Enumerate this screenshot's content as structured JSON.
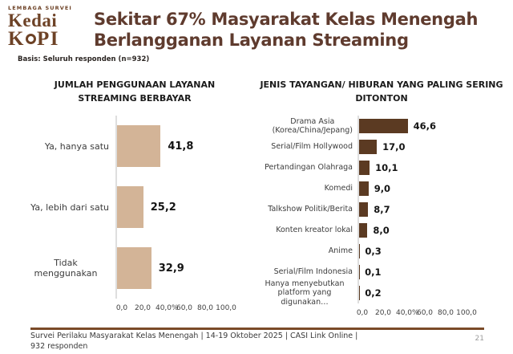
{
  "logo": {
    "tagline": "LEMBAGA SURVEI",
    "name_line1": "Kedai",
    "name_line2_prefix": "K",
    "name_line2_suffix": "PI"
  },
  "header": {
    "title_lines": [
      "Sekitar 67% Masyarakat Kelas Menengah",
      "Berlangganan Layanan Streaming"
    ],
    "basis": "Basis: Seluruh responden (n=932)"
  },
  "colors": {
    "title_brown": "#5f3b2e",
    "logo_brown": "#6d4226",
    "left_bar": "#d3b497",
    "right_bar": "#5b3a22",
    "footer_line": "#7a4a28",
    "axis_line": "#dedede"
  },
  "chart_data": [
    {
      "type": "bar",
      "orientation": "horizontal",
      "title": "JUMLAH PENGGUNAAN LAYANAN STREAMING BERBAYAR",
      "title_lines": [
        "JUMLAH PENGGUNAAN LAYANAN",
        "STREAMING BERBAYAR"
      ],
      "categories": [
        "Ya, hanya satu",
        "Ya, lebih dari satu",
        "Tidak menggunakan"
      ],
      "category_lines": [
        [
          "Ya, hanya satu"
        ],
        [
          "Ya, lebih dari satu"
        ],
        [
          "Tidak menggunakan"
        ]
      ],
      "values": [
        41.8,
        25.2,
        32.9
      ],
      "value_labels": [
        "41,8",
        "25,2",
        "32,9"
      ],
      "xlim": [
        0,
        100
      ],
      "x_tick_values": [
        0,
        20,
        40,
        60,
        80,
        100
      ],
      "x_tick_labels": [
        "0,0",
        "20,0",
        "40,0",
        "60,0",
        "80,0",
        "100,0"
      ],
      "unit_label": "%",
      "bar_color": "#d3b497",
      "grid": false,
      "legend": false
    },
    {
      "type": "bar",
      "orientation": "horizontal",
      "title": "JENIS TAYANGAN/ HIBURAN YANG PALING SERING DITONTON",
      "title_lines": [
        "JENIS TAYANGAN/ HIBURAN YANG PALING SERING",
        "DITONTON"
      ],
      "categories": [
        "Drama Asia (Korea/China/Jepang)",
        "Serial/Film Hollywood",
        "Pertandingan Olahraga",
        "Komedi",
        "Talkshow Politik/Berita",
        "Konten kreator lokal",
        "Anime",
        "Serial/Film Indonesia",
        "Hanya menyebutkan platform yang digunakan…"
      ],
      "category_lines": [
        [
          "Drama Asia",
          "(Korea/China/Jepang)"
        ],
        [
          "Serial/Film Hollywood"
        ],
        [
          "Pertandingan Olahraga"
        ],
        [
          "Komedi"
        ],
        [
          "Talkshow Politik/Berita"
        ],
        [
          "Konten kreator lokal"
        ],
        [
          "Anime"
        ],
        [
          "Serial/Film Indonesia"
        ],
        [
          "Hanya menyebutkan",
          "platform yang digunakan…"
        ]
      ],
      "values": [
        46.6,
        17.0,
        10.1,
        9.0,
        8.7,
        8.0,
        0.3,
        0.1,
        0.2
      ],
      "value_labels": [
        "46,6",
        "17,0",
        "10,1",
        "9,0",
        "8,7",
        "8,0",
        "0,3",
        "0,1",
        "0,2"
      ],
      "xlim": [
        0,
        100
      ],
      "x_tick_values": [
        0,
        20,
        40,
        60,
        80,
        100
      ],
      "x_tick_labels": [
        "0,0",
        "20,0",
        "40,0",
        "60,0",
        "80,0",
        "100,0"
      ],
      "unit_label": "%",
      "bar_color": "#5b3a22",
      "grid": false,
      "legend": false
    }
  ],
  "footer": {
    "source_line1": "Survei Perilaku Masyarakat Kelas Menengah | 14-19 Oktober 2025 | CASI Link Online |",
    "source_line2": "932 responden",
    "page_number": "21"
  }
}
